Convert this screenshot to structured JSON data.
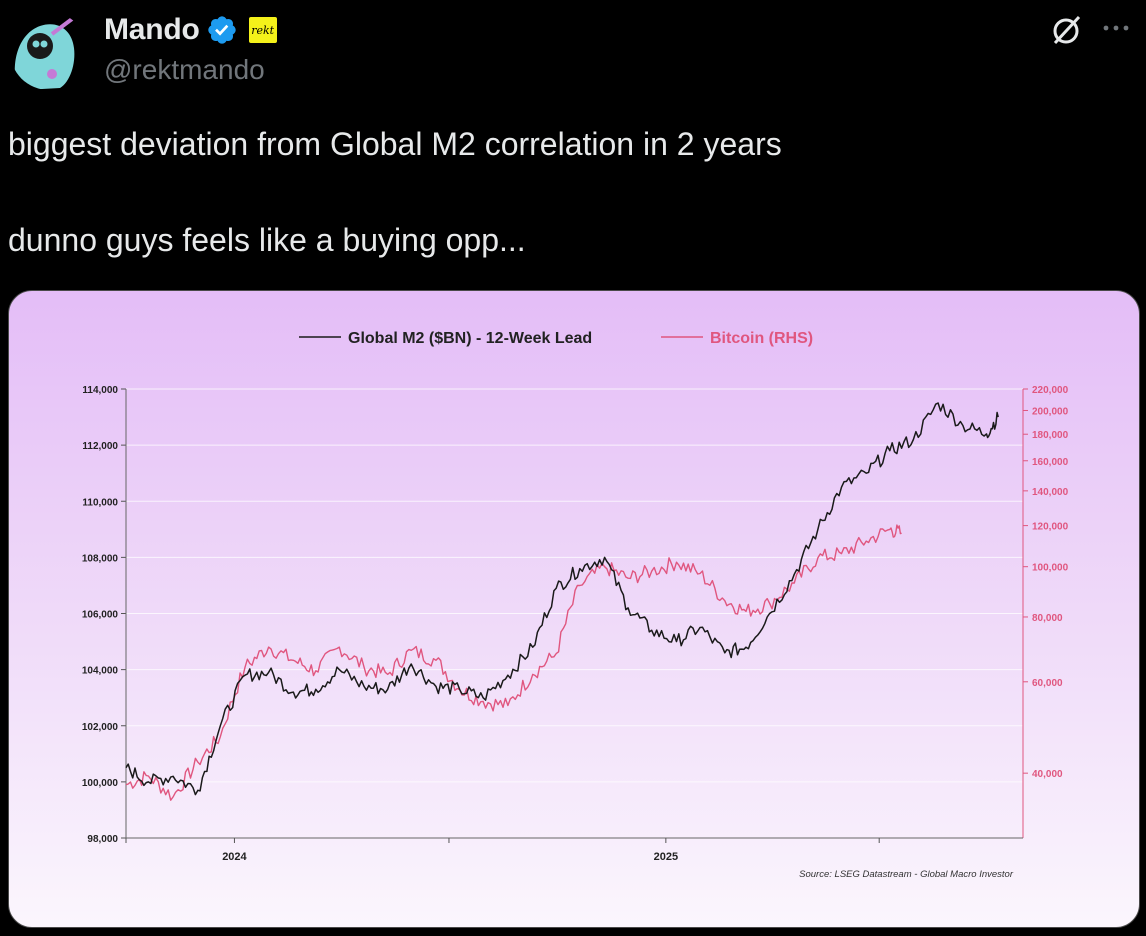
{
  "tweet": {
    "author": {
      "display_name": "Mando",
      "handle": "@rektmando",
      "affiliate_badge_text": "rekt"
    },
    "text_lines": [
      "biggest deviation from Global M2 correlation in 2 years",
      "dunno guys feels like a buying opp..."
    ],
    "icons": {
      "verified": "verified-badge-icon",
      "grok": "grok-icon",
      "more": "more-options-icon"
    },
    "colors": {
      "background": "#000000",
      "text": "#e7e9ea",
      "muted": "#71767b",
      "verified": "#1d9bf0"
    }
  },
  "chart_data": {
    "type": "line",
    "title": "",
    "legend": [
      {
        "name": "Global M2 ($BN) - 12-Week Lead",
        "color": "#1a1a1a"
      },
      {
        "name": "Bitcoin (RHS)",
        "color": "#e0567f"
      }
    ],
    "legend_position": "top-center",
    "x_tick_labels": [
      "2024",
      "2025"
    ],
    "xlim": [
      "2023-10-01",
      "2025-10-31"
    ],
    "left_axis": {
      "ylim": [
        98000,
        114000
      ],
      "tick_labels": [
        "114,000",
        "112,000",
        "110,000",
        "108,000",
        "106,000",
        "104,000",
        "102,000",
        "100,000",
        "98,000"
      ],
      "ticks": [
        114000,
        112000,
        110000,
        108000,
        106000,
        104000,
        102000,
        100000,
        98000
      ]
    },
    "right_axis": {
      "scale": "log",
      "ylim": [
        30000,
        220000
      ],
      "tick_labels": [
        "220,000",
        "200,000",
        "180,000",
        "160,000",
        "140,000",
        "120,000",
        "100,000",
        "80,000",
        "60,000",
        "40,000"
      ],
      "ticks": [
        220000,
        200000,
        180000,
        160000,
        140000,
        120000,
        100000,
        80000,
        60000,
        40000
      ],
      "color": "#e0567f"
    },
    "grid": true,
    "source": "Source: LSEG Datastream - Global Macro Investor",
    "series": [
      {
        "name": "Global M2 ($BN) - 12-Week Lead",
        "axis": "left",
        "x": [
          "2023-10-01",
          "2023-10-20",
          "2023-11-10",
          "2023-12-01",
          "2023-12-20",
          "2024-01-10",
          "2024-01-30",
          "2024-02-20",
          "2024-03-10",
          "2024-03-30",
          "2024-04-20",
          "2024-05-10",
          "2024-05-30",
          "2024-06-20",
          "2024-07-10",
          "2024-07-30",
          "2024-08-20",
          "2024-09-10",
          "2024-09-30",
          "2024-10-20",
          "2024-11-10",
          "2024-11-30",
          "2024-12-20",
          "2025-01-10",
          "2025-01-30",
          "2025-02-20",
          "2025-03-10",
          "2025-03-30",
          "2025-04-20",
          "2025-05-10",
          "2025-05-30",
          "2025-06-20",
          "2025-07-10",
          "2025-07-30",
          "2025-08-20",
          "2025-09-10",
          "2025-09-30",
          "2025-10-10"
        ],
        "values": [
          100500,
          100000,
          100200,
          99700,
          102000,
          103800,
          103900,
          103200,
          103300,
          104000,
          103400,
          103300,
          104200,
          103400,
          103300,
          103000,
          103800,
          104800,
          106900,
          107600,
          108000,
          106200,
          105400,
          105000,
          105500,
          104600,
          104800,
          106000,
          107400,
          109000,
          110500,
          111000,
          111800,
          112200,
          113500,
          112700,
          112400,
          113000
        ]
      },
      {
        "name": "Bitcoin (RHS)",
        "axis": "right",
        "x": [
          "2023-10-01",
          "2023-10-20",
          "2023-11-10",
          "2023-12-01",
          "2023-12-20",
          "2024-01-10",
          "2024-01-30",
          "2024-02-20",
          "2024-03-10",
          "2024-03-30",
          "2024-04-20",
          "2024-05-10",
          "2024-05-30",
          "2024-06-20",
          "2024-07-10",
          "2024-07-30",
          "2024-08-20",
          "2024-09-10",
          "2024-09-30",
          "2024-10-20",
          "2024-11-10",
          "2024-11-30",
          "2024-12-20",
          "2025-01-10",
          "2025-01-30",
          "2025-02-20",
          "2025-03-10",
          "2025-03-30",
          "2025-04-20",
          "2025-05-10",
          "2025-05-30",
          "2025-06-20",
          "2025-07-10",
          "2025-07-20"
        ],
        "values": [
          38000,
          39500,
          36000,
          42000,
          47000,
          64000,
          70000,
          66000,
          63000,
          70000,
          64000,
          62000,
          69000,
          66000,
          58000,
          55000,
          54000,
          62000,
          68000,
          92000,
          100000,
          95000,
          98000,
          102000,
          97000,
          86000,
          82000,
          85000,
          93000,
          104000,
          106000,
          112000,
          118000,
          116000
        ]
      }
    ]
  }
}
